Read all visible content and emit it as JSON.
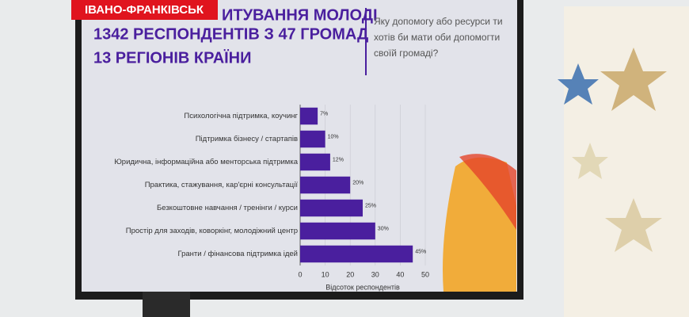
{
  "overlay": {
    "location": "ІВАНО-ФРАНКІВСЬК"
  },
  "slide": {
    "heading_lines": [
      "ИТУВАННЯ МОЛОДІ",
      "1342 РЕСПОНДЕНТІВ З 47 ГРОМАД",
      "13 РЕГІОНІВ КРАЇНИ"
    ],
    "question_lines": [
      "Яку допомогу або ресурси ти",
      "хотів би мати оби допомогти",
      "своїй громаді?"
    ]
  },
  "chart_data": {
    "type": "barh",
    "categories": [
      "Психологічна підтримка, коучинг",
      "Підтримка бізнесу / стартапів",
      "Юридична, інформаційна або менторська підтримка",
      "Практика, стажування, кар'єрні консультації",
      "Безкоштовне навчання / тренінги / курси",
      "Простір для заходів, коворкінг, молодіжний центр",
      "Гранти / фінансова підтримка ідей"
    ],
    "values": [
      7,
      10,
      12,
      20,
      25,
      30,
      45
    ],
    "value_labels": [
      "7%",
      "10%",
      "12%",
      "20%",
      "25%",
      "30%",
      "45%"
    ],
    "color": "#4a1f9e",
    "xlabel": "Відсоток респондентів",
    "xlim": [
      0,
      50
    ],
    "xticks": [
      0,
      10,
      20,
      30,
      40,
      50
    ],
    "grid": true
  }
}
